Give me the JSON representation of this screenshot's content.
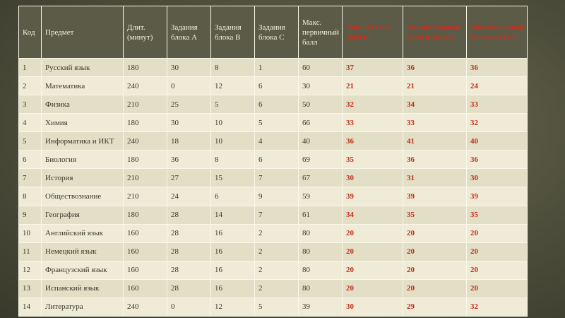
{
  "headers": [
    "Код",
    "Предмет",
    "Длит. (минут)",
    "Задания блока А",
    "Задания блока В",
    "Задания блока С",
    "Макс. первичный балл",
    "Мин. балл в 2009 г.",
    "Минимальный балл в 2010 г.",
    "Минимальный балл в 2011 г."
  ],
  "rows": [
    [
      "1",
      "Русский язык",
      "180",
      "30",
      "8",
      "1",
      "60",
      "37",
      "36",
      "36"
    ],
    [
      "2",
      "Математика",
      "240",
      "0",
      "12",
      "6",
      "30",
      "21",
      "21",
      "24"
    ],
    [
      "3",
      "Физика",
      "210",
      "25",
      "5",
      "6",
      "50",
      "32",
      "34",
      "33"
    ],
    [
      "4",
      "Химия",
      "180",
      "30",
      "10",
      "5",
      "66",
      "33",
      "33",
      "32"
    ],
    [
      "5",
      "Информатика и ИКТ",
      "240",
      "18",
      "10",
      "4",
      "40",
      "36",
      "41",
      "40"
    ],
    [
      "6",
      "Биология",
      "180",
      "36",
      "8",
      "6",
      "69",
      "35",
      "36",
      "36"
    ],
    [
      "7",
      "История",
      "210",
      "27",
      "15",
      "7",
      "67",
      "30",
      "31",
      "30"
    ],
    [
      "8",
      "Обществознание",
      "210",
      "24",
      "6",
      "9",
      "59",
      "39",
      "39",
      "39"
    ],
    [
      "9",
      "География",
      "180",
      "28",
      "14",
      "7",
      "61",
      "34",
      "35",
      "35"
    ],
    [
      "10",
      "Английский язык",
      "160",
      "28",
      "16",
      "2",
      "80",
      "20",
      "20",
      "20"
    ],
    [
      "11",
      "Немецкий язык",
      "160",
      "28",
      "16",
      "2",
      "80",
      "20",
      "20",
      "20"
    ],
    [
      "12",
      "Французский язык",
      "160",
      "28",
      "16",
      "2",
      "80",
      "20",
      "20",
      "20"
    ],
    [
      "13",
      "Испанский язык",
      "160",
      "28",
      "16",
      "2",
      "80",
      "20",
      "20",
      "20"
    ],
    [
      "14",
      "Литература",
      "240",
      "0",
      "12",
      "5",
      "39",
      "30",
      "29",
      "32"
    ]
  ],
  "colors": {
    "header_bg": "#5b5b47",
    "score_red": "#c0301c",
    "row_light": "#efebd6",
    "row_dark": "#e3dec6"
  }
}
